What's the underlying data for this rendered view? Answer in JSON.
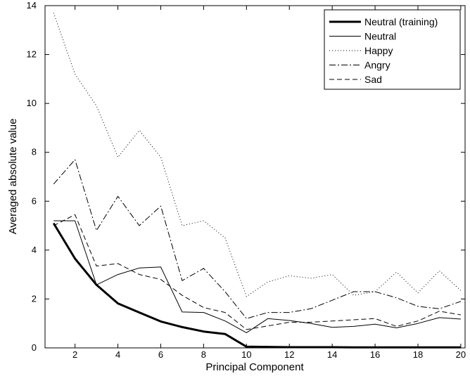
{
  "chart_data": {
    "type": "line",
    "title": "",
    "xlabel": "Principal Component",
    "ylabel": "Averaged absolute value",
    "xlim": [
      0.6,
      20.2
    ],
    "ylim": [
      0,
      14
    ],
    "xticks": [
      2,
      4,
      6,
      8,
      10,
      12,
      14,
      16,
      18,
      20
    ],
    "yticks": [
      0,
      2,
      4,
      6,
      8,
      10,
      12,
      14
    ],
    "grid": false,
    "legend_position": "top-right",
    "x": [
      1,
      2,
      3,
      4,
      5,
      6,
      7,
      8,
      9,
      10,
      11,
      12,
      13,
      14,
      15,
      16,
      17,
      18,
      19,
      20
    ],
    "series": [
      {
        "name": "Neutral (training)",
        "style": "solid-thick",
        "color": "#000000",
        "values": [
          5.1,
          3.65,
          2.58,
          1.82,
          1.45,
          1.08,
          0.85,
          0.67,
          0.57,
          0.05,
          0.04,
          0.03,
          0.03,
          0.03,
          0.02,
          0.02,
          0.02,
          0.02,
          0.02,
          0.02
        ]
      },
      {
        "name": "Neutral",
        "style": "solid",
        "color": "#000000",
        "values": [
          5.2,
          5.2,
          2.58,
          3.0,
          3.27,
          3.31,
          1.47,
          1.45,
          1.1,
          0.62,
          1.2,
          1.12,
          1.0,
          0.84,
          0.88,
          0.97,
          0.82,
          1.0,
          1.24,
          1.18
        ]
      },
      {
        "name": "Happy",
        "style": "dotted",
        "color": "#000000",
        "values": [
          13.7,
          11.2,
          9.9,
          7.8,
          8.9,
          7.8,
          5.0,
          5.2,
          4.5,
          2.1,
          2.7,
          2.95,
          2.85,
          3.0,
          2.15,
          2.3,
          3.1,
          2.25,
          3.15,
          2.35
        ]
      },
      {
        "name": "Angry",
        "style": "dash-dot",
        "color": "#000000",
        "values": [
          6.7,
          7.7,
          4.8,
          6.2,
          5.0,
          5.8,
          2.75,
          3.25,
          2.3,
          1.2,
          1.45,
          1.45,
          1.6,
          1.95,
          2.3,
          2.3,
          2.05,
          1.7,
          1.6,
          1.9
        ]
      },
      {
        "name": "Sad",
        "style": "dashed",
        "color": "#000000",
        "values": [
          5.0,
          5.45,
          3.35,
          3.45,
          3.0,
          2.8,
          2.15,
          1.65,
          1.45,
          0.75,
          0.9,
          1.05,
          1.05,
          1.1,
          1.15,
          1.2,
          0.88,
          1.1,
          1.5,
          1.35
        ]
      }
    ]
  }
}
